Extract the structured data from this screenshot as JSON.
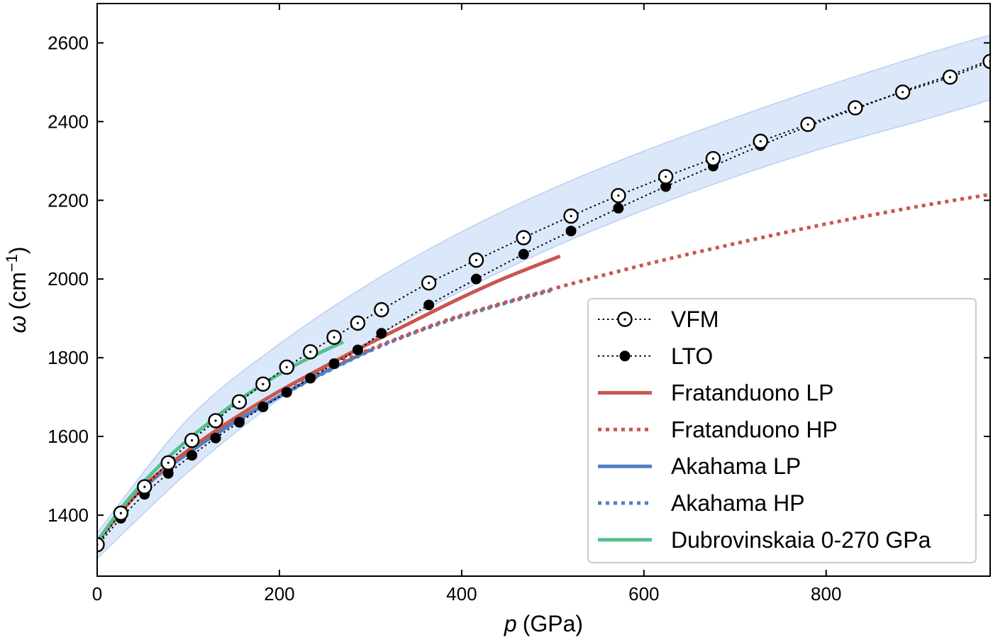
{
  "chart_data": {
    "type": "line",
    "xlabel_var": "p",
    "xlabel_unit": "(GPa)",
    "ylabel_var": "ω",
    "ylabel_unit_pre": "(cm",
    "ylabel_unit_sup": "−1",
    "ylabel_unit_post": ")",
    "xlim": [
      0,
      980
    ],
    "ylim": [
      1245,
      2700
    ],
    "xticks": [
      0,
      200,
      400,
      600,
      800
    ],
    "xtick_labels": [
      "0",
      "200",
      "400",
      "600",
      "800"
    ],
    "yticks": [
      1400,
      1600,
      1800,
      2000,
      2200,
      2400,
      2600
    ],
    "ytick_labels": [
      "1400",
      "1600",
      "1800",
      "2000",
      "2200",
      "2400",
      "2600"
    ],
    "grid": false,
    "legend_position": "lower-right",
    "uncertainty_band": {
      "color": "#cfe0f7",
      "x": [
        0,
        100,
        200,
        300,
        400,
        500,
        600,
        700,
        800,
        900,
        980
      ],
      "upper": [
        1355,
        1645,
        1835,
        1990,
        2120,
        2230,
        2325,
        2410,
        2490,
        2565,
        2620
      ],
      "lower": [
        1290,
        1510,
        1695,
        1845,
        1970,
        2080,
        2175,
        2260,
        2335,
        2400,
        2455
      ]
    },
    "series": [
      {
        "name": "VFM",
        "style": "dotted-open-circle",
        "color": "#000000",
        "x": [
          0,
          26,
          52,
          78,
          104,
          130,
          156,
          182,
          208,
          234,
          260,
          286,
          312,
          364,
          416,
          468,
          520,
          572,
          624,
          676,
          728,
          780,
          832,
          884,
          936,
          980
        ],
        "y": [
          1325,
          1405,
          1472,
          1533,
          1590,
          1640,
          1688,
          1733,
          1776,
          1815,
          1852,
          1888,
          1922,
          1990,
          2048,
          2105,
          2160,
          2212,
          2260,
          2306,
          2350,
          2393,
          2435,
          2475,
          2513,
          2553
        ]
      },
      {
        "name": "LTO",
        "style": "dotted-filled-circle",
        "color": "#000000",
        "x": [
          0,
          26,
          52,
          78,
          104,
          130,
          156,
          182,
          208,
          234,
          260,
          286,
          312,
          364,
          416,
          468,
          520,
          572,
          624,
          676,
          728,
          780,
          832,
          884,
          936,
          980
        ],
        "y": [
          1322,
          1392,
          1453,
          1506,
          1552,
          1596,
          1636,
          1675,
          1712,
          1748,
          1785,
          1820,
          1862,
          1934,
          2000,
          2063,
          2122,
          2180,
          2235,
          2287,
          2339,
          2388,
          2432,
          2477,
          2518,
          2557
        ]
      },
      {
        "name": "Fratanduono LP",
        "style": "solid",
        "color": "#c9564f",
        "x": [
          0,
          50,
          100,
          150,
          200,
          250,
          300,
          350,
          400,
          450,
          508
        ],
        "y": [
          1333,
          1470,
          1565,
          1645,
          1715,
          1778,
          1838,
          1896,
          1953,
          2005,
          2058
        ]
      },
      {
        "name": "Fratanduono HP",
        "style": "dotted",
        "color": "#c9564f",
        "x": [
          200,
          250,
          300,
          350,
          400,
          500,
          600,
          700,
          800,
          900,
          980
        ],
        "y": [
          1715,
          1772,
          1822,
          1867,
          1908,
          1975,
          2036,
          2090,
          2140,
          2184,
          2215
        ]
      },
      {
        "name": "Akahama LP",
        "style": "solid",
        "color": "#4f7fc3",
        "x": [
          0,
          30,
          60,
          100,
          150,
          200,
          250,
          300
        ],
        "y": [
          1333,
          1420,
          1488,
          1558,
          1635,
          1702,
          1764,
          1820
        ]
      },
      {
        "name": "Akahama HP",
        "style": "dotted",
        "color": "#4f7fc3",
        "x": [
          200,
          250,
          300,
          350,
          400,
          450,
          500
        ],
        "y": [
          1702,
          1762,
          1818,
          1865,
          1905,
          1940,
          1972
        ]
      },
      {
        "name": "Dubrovinskaia 0-270 GPa",
        "style": "solid",
        "color": "#55c08e",
        "x": [
          0,
          30,
          60,
          90,
          120,
          150,
          180,
          210,
          240,
          270
        ],
        "y": [
          1333,
          1428,
          1506,
          1572,
          1630,
          1683,
          1730,
          1772,
          1808,
          1840
        ]
      }
    ]
  }
}
